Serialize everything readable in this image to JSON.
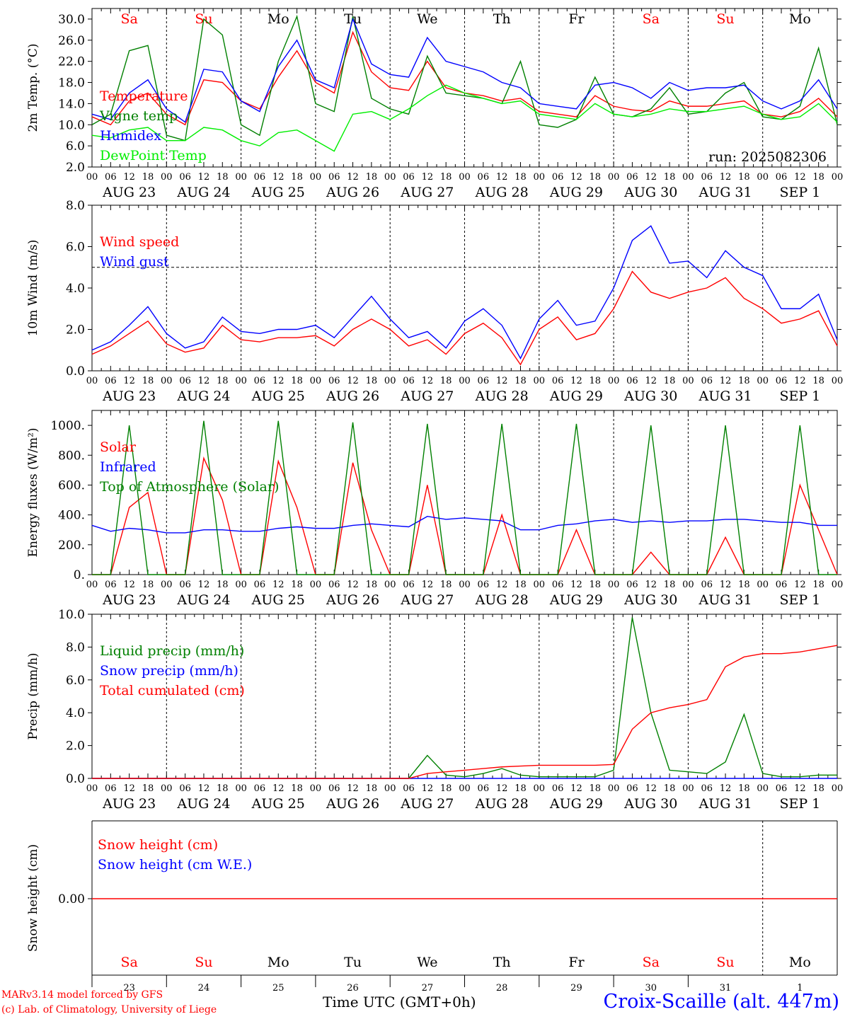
{
  "chart_data": [
    {
      "type": "line",
      "ylabel": "2m Temp. (°C)",
      "ylim": [
        2,
        32
      ],
      "yticks": [
        "2.0",
        "6.0",
        "10.0",
        "14.0",
        "18.0",
        "22.0",
        "26.0",
        "30.0"
      ],
      "run_label": "run: 2025082306",
      "x_hours": [
        0,
        6,
        12,
        18,
        24,
        30,
        36,
        42,
        48,
        54,
        60,
        66,
        72,
        78,
        84,
        90,
        96,
        102,
        108,
        114,
        120,
        126,
        132,
        138,
        144,
        150,
        156,
        162,
        168,
        174,
        180,
        186,
        192,
        198,
        204,
        210,
        216,
        222,
        228,
        234,
        240
      ],
      "series": [
        {
          "name": "Temperature",
          "color": "#ff0000",
          "values": [
            11.5,
            10.0,
            14.5,
            16.0,
            12.0,
            10.0,
            18.5,
            18.0,
            14.5,
            13.0,
            19.0,
            24.0,
            18.0,
            16.0,
            27.5,
            20.0,
            17.0,
            16.5,
            22.0,
            17.0,
            16.0,
            15.5,
            14.5,
            15.0,
            12.5,
            12.0,
            11.5,
            15.5,
            13.5,
            12.8,
            12.5,
            14.5,
            13.5,
            13.5,
            14.0,
            14.5,
            12.0,
            11.5,
            12.5,
            15.0,
            11.5
          ]
        },
        {
          "name": "Vigne temp",
          "color": "#008000",
          "values": [
            10.0,
            12.0,
            24.0,
            25.0,
            8.0,
            7.0,
            30.0,
            27.0,
            10.0,
            8.0,
            22.0,
            30.5,
            14.0,
            12.5,
            30.5,
            15.0,
            13.0,
            12.0,
            23.0,
            16.0,
            15.5,
            15.0,
            14.0,
            22.0,
            10.0,
            9.5,
            11.0,
            19.0,
            12.0,
            11.5,
            13.0,
            17.0,
            12.0,
            12.5,
            16.0,
            18.0,
            11.5,
            11.0,
            13.5,
            24.5,
            10.0
          ]
        },
        {
          "name": "Humidex",
          "color": "#0000ff",
          "values": [
            12.0,
            11.0,
            16.0,
            18.5,
            13.0,
            10.5,
            20.5,
            20.0,
            14.5,
            12.5,
            21.0,
            26.0,
            18.5,
            17.0,
            30.0,
            21.5,
            19.5,
            19.0,
            26.5,
            22.0,
            21.0,
            20.0,
            18.0,
            17.0,
            14.0,
            13.5,
            13.0,
            17.5,
            18.0,
            17.0,
            15.0,
            18.0,
            16.5,
            17.0,
            17.0,
            17.5,
            14.5,
            13.0,
            14.5,
            18.5,
            13.0
          ]
        },
        {
          "name": "DewPoint Temp",
          "color": "#00ee00",
          "values": [
            8.0,
            7.5,
            9.0,
            9.5,
            7.0,
            7.0,
            9.5,
            9.0,
            7.0,
            6.0,
            8.5,
            9.0,
            7.0,
            5.0,
            12.0,
            12.5,
            11.0,
            13.0,
            15.5,
            17.5,
            16.0,
            15.0,
            14.0,
            14.5,
            12.0,
            11.5,
            11.0,
            14.0,
            12.0,
            11.5,
            12.0,
            13.0,
            12.5,
            12.5,
            13.0,
            13.5,
            12.0,
            11.0,
            11.5,
            14.0,
            10.5
          ]
        }
      ],
      "day_names": [
        {
          "label": "Sa",
          "color": "#ff0000"
        },
        {
          "label": "Su",
          "color": "#ff0000"
        },
        {
          "label": "Mo",
          "color": "#000000"
        },
        {
          "label": "Tu",
          "color": "#000000"
        },
        {
          "label": "We",
          "color": "#000000"
        },
        {
          "label": "Th",
          "color": "#000000"
        },
        {
          "label": "Fr",
          "color": "#000000"
        },
        {
          "label": "Sa",
          "color": "#ff0000"
        },
        {
          "label": "Su",
          "color": "#ff0000"
        },
        {
          "label": "Mo",
          "color": "#000000"
        }
      ]
    },
    {
      "type": "line",
      "ylabel": "10m Wind (m/s)",
      "ylim": [
        0,
        8
      ],
      "yticks": [
        "0.0",
        "2.0",
        "4.0",
        "6.0",
        "8.0"
      ],
      "reference_line": 5,
      "x_hours": [
        0,
        6,
        12,
        18,
        24,
        30,
        36,
        42,
        48,
        54,
        60,
        66,
        72,
        78,
        84,
        90,
        96,
        102,
        108,
        114,
        120,
        126,
        132,
        138,
        144,
        150,
        156,
        162,
        168,
        174,
        180,
        186,
        192,
        198,
        204,
        210,
        216,
        222,
        228,
        234,
        240
      ],
      "series": [
        {
          "name": "Wind speed",
          "color": "#ff0000",
          "values": [
            0.8,
            1.2,
            1.8,
            2.4,
            1.3,
            0.9,
            1.1,
            2.2,
            1.5,
            1.4,
            1.6,
            1.6,
            1.7,
            1.2,
            2.0,
            2.5,
            2.0,
            1.2,
            1.5,
            0.8,
            1.8,
            2.3,
            1.6,
            0.3,
            2.0,
            2.6,
            1.5,
            1.8,
            3.0,
            4.8,
            3.8,
            3.5,
            3.8,
            4.0,
            4.5,
            3.5,
            3.0,
            2.3,
            2.5,
            2.9,
            1.2
          ]
        },
        {
          "name": "Wind gust",
          "color": "#0000ff",
          "values": [
            1.0,
            1.4,
            2.2,
            3.1,
            1.8,
            1.1,
            1.4,
            2.6,
            1.9,
            1.8,
            2.0,
            2.0,
            2.2,
            1.6,
            2.6,
            3.6,
            2.5,
            1.6,
            1.9,
            1.1,
            2.4,
            3.0,
            2.2,
            0.6,
            2.5,
            3.4,
            2.2,
            2.4,
            4.0,
            6.3,
            7.0,
            5.2,
            5.3,
            4.5,
            5.8,
            5.0,
            4.6,
            3.0,
            3.0,
            3.7,
            1.5
          ]
        }
      ]
    },
    {
      "type": "line",
      "ylabel": "Energy fluxes (W/m²)",
      "ylim": [
        0,
        1100
      ],
      "yticks": [
        "0.",
        "200.",
        "400.",
        "600.",
        "800.",
        "1000."
      ],
      "x_hours": [
        0,
        6,
        12,
        18,
        24,
        30,
        36,
        42,
        48,
        54,
        60,
        66,
        72,
        78,
        84,
        90,
        96,
        102,
        108,
        114,
        120,
        126,
        132,
        138,
        144,
        150,
        156,
        162,
        168,
        174,
        180,
        186,
        192,
        198,
        204,
        210,
        216,
        222,
        228,
        234,
        240
      ],
      "series": [
        {
          "name": "Solar",
          "color": "#ff0000",
          "values": [
            0,
            0,
            450,
            550,
            0,
            0,
            780,
            500,
            0,
            0,
            760,
            450,
            0,
            0,
            750,
            300,
            0,
            0,
            600,
            0,
            0,
            0,
            400,
            0,
            0,
            0,
            300,
            0,
            0,
            0,
            150,
            0,
            0,
            0,
            250,
            0,
            0,
            0,
            600,
            300,
            0
          ]
        },
        {
          "name": "Infrared",
          "color": "#0000ff",
          "values": [
            330,
            290,
            310,
            300,
            280,
            280,
            300,
            300,
            290,
            290,
            310,
            320,
            310,
            310,
            330,
            340,
            330,
            320,
            390,
            370,
            380,
            370,
            360,
            300,
            300,
            330,
            340,
            360,
            370,
            350,
            360,
            350,
            360,
            360,
            370,
            370,
            360,
            350,
            350,
            330,
            330
          ]
        },
        {
          "name": "Top of Atmosphere (Solar)",
          "color": "#008000",
          "values": [
            0,
            0,
            1000,
            0,
            0,
            0,
            1030,
            0,
            0,
            0,
            1030,
            0,
            0,
            0,
            1020,
            0,
            0,
            0,
            1010,
            0,
            0,
            0,
            1010,
            0,
            0,
            0,
            1010,
            0,
            0,
            0,
            1000,
            0,
            0,
            0,
            1000,
            0,
            0,
            0,
            1000,
            0,
            0
          ]
        }
      ]
    },
    {
      "type": "line",
      "ylabel": "Precip (mm/h)",
      "ylim": [
        0,
        10
      ],
      "yticks": [
        "0.0",
        "2.0",
        "4.0",
        "6.0",
        "8.0",
        "10.0"
      ],
      "x_hours": [
        0,
        6,
        12,
        18,
        24,
        30,
        36,
        42,
        48,
        54,
        60,
        66,
        72,
        78,
        84,
        90,
        96,
        102,
        108,
        114,
        120,
        126,
        132,
        138,
        144,
        150,
        156,
        162,
        168,
        174,
        180,
        186,
        192,
        198,
        204,
        210,
        216,
        222,
        228,
        234,
        240
      ],
      "series": [
        {
          "name": "Liquid precip (mm/h)",
          "color": "#008000",
          "values": [
            0,
            0,
            0,
            0,
            0,
            0,
            0,
            0,
            0,
            0,
            0,
            0,
            0,
            0,
            0,
            0,
            0,
            0,
            1.4,
            0.2,
            0.1,
            0.3,
            0.6,
            0.2,
            0.1,
            0.1,
            0.1,
            0.1,
            0.5,
            9.8,
            4.0,
            0.5,
            0.4,
            0.3,
            1.0,
            3.9,
            0.3,
            0.1,
            0.1,
            0.2,
            0.2
          ]
        },
        {
          "name": "Snow precip (mm/h)",
          "color": "#0000ff",
          "values": [
            0,
            0,
            0,
            0,
            0,
            0,
            0,
            0,
            0,
            0,
            0,
            0,
            0,
            0,
            0,
            0,
            0,
            0,
            0,
            0,
            0,
            0,
            0,
            0,
            0,
            0,
            0,
            0,
            0,
            0,
            0,
            0,
            0,
            0,
            0,
            0,
            0,
            0,
            0,
            0,
            0
          ]
        },
        {
          "name": "Total cumulated (cm)",
          "color": "#ff0000",
          "values": [
            0,
            0,
            0,
            0,
            0,
            0,
            0,
            0,
            0,
            0,
            0,
            0,
            0,
            0,
            0,
            0,
            0,
            0,
            0.3,
            0.4,
            0.5,
            0.6,
            0.7,
            0.75,
            0.8,
            0.8,
            0.8,
            0.8,
            0.85,
            3.0,
            4.0,
            4.3,
            4.5,
            4.8,
            6.8,
            7.4,
            7.6,
            7.6,
            7.7,
            7.9,
            8.1
          ]
        }
      ]
    },
    {
      "type": "line",
      "ylabel": "Snow height (cm)",
      "yticks": [
        "0.00"
      ],
      "series": [
        {
          "name": "Snow height (cm)",
          "color": "#ff0000"
        },
        {
          "name": "Snow height (cm W.E.)",
          "color": "#0000ff"
        }
      ],
      "day_names": [
        {
          "label": "Sa",
          "color": "#ff0000"
        },
        {
          "label": "Su",
          "color": "#ff0000"
        },
        {
          "label": "Mo",
          "color": "#000000"
        },
        {
          "label": "Tu",
          "color": "#000000"
        },
        {
          "label": "We",
          "color": "#000000"
        },
        {
          "label": "Th",
          "color": "#000000"
        },
        {
          "label": "Fr",
          "color": "#000000"
        },
        {
          "label": "Sa",
          "color": "#ff0000"
        },
        {
          "label": "Su",
          "color": "#ff0000"
        },
        {
          "label": "Mo",
          "color": "#000000"
        }
      ],
      "day_numbers": [
        "23",
        "24",
        "25",
        "26",
        "27",
        "28",
        "29",
        "30",
        "31",
        "1"
      ]
    }
  ],
  "axis": {
    "hour_labels": [
      "00",
      "06",
      "12",
      "18"
    ],
    "end_label": "00",
    "date_labels": [
      "AUG 23",
      "AUG 24",
      "AUG 25",
      "AUG 26",
      "AUG 27",
      "AUG 28",
      "AUG 29",
      "AUG 30",
      "AUG 31",
      "SEP  1"
    ]
  },
  "footer": {
    "model_line1": "MARv3.14 model forced by GFS",
    "model_line2": "(c) Lab. of Climatology, University of Liege",
    "time_label": "Time UTC (GMT+0h)",
    "location": "Croix-Scaille (alt. 447m)"
  }
}
